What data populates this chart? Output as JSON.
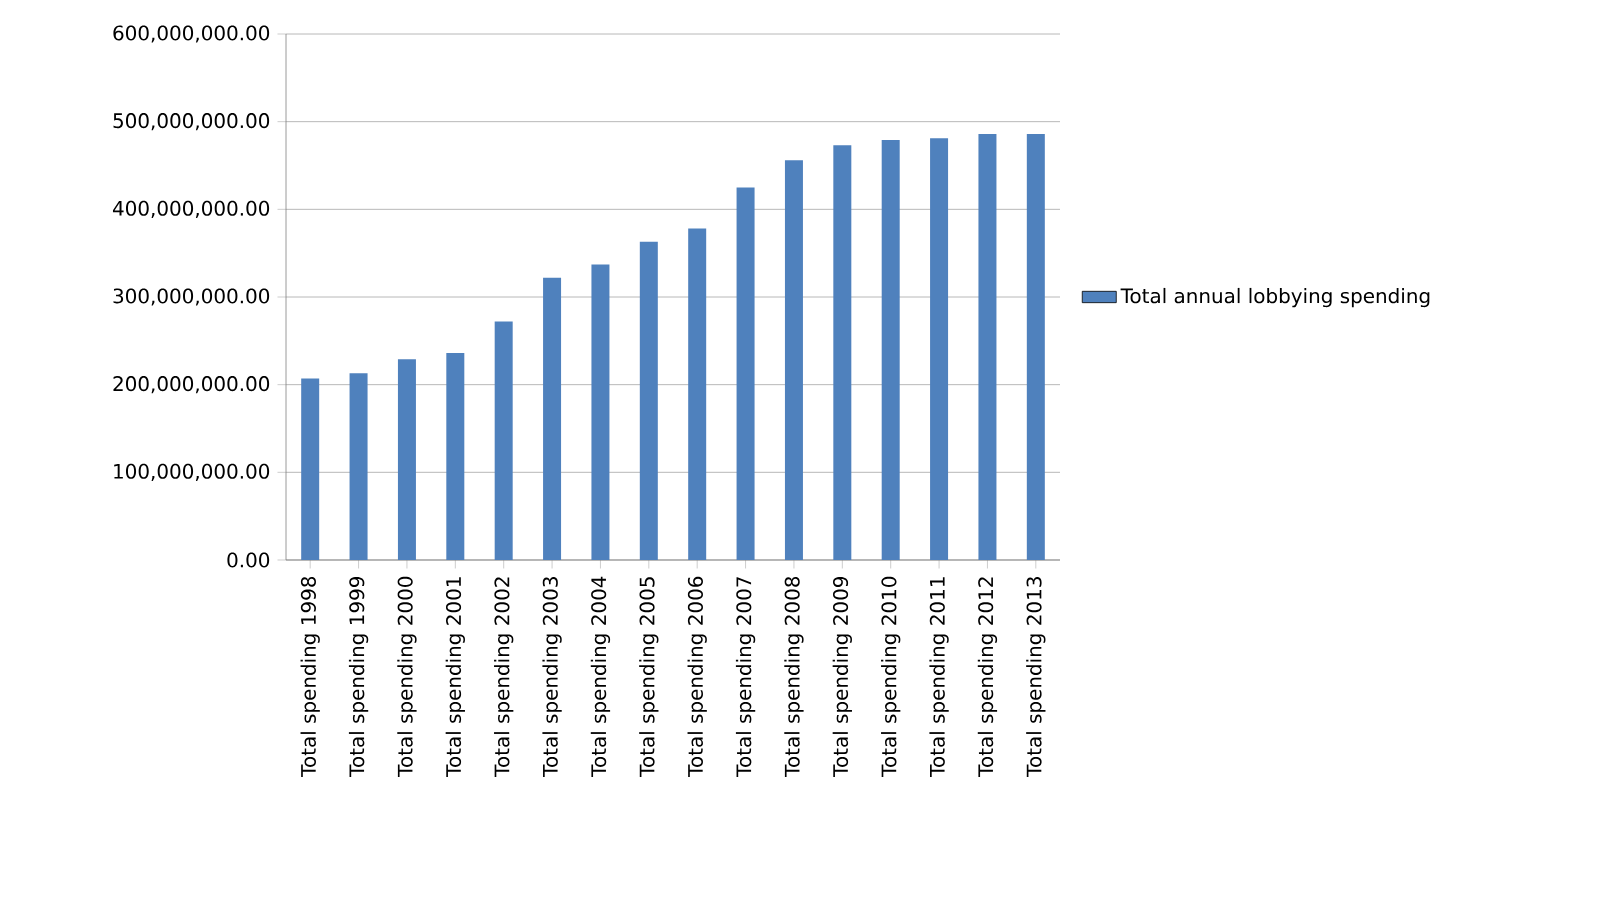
{
  "chart_data": {
    "type": "bar",
    "categories": [
      "Total spending 1998",
      "Total spending 1999",
      "Total spending 2000",
      "Total spending 2001",
      "Total spending 2002",
      "Total spending 2003",
      "Total spending 2004",
      "Total spending 2005",
      "Total spending 2006",
      "Total spending 2007",
      "Total spending 2008",
      "Total spending 2009",
      "Total spending 2010",
      "Total spending 2011",
      "Total spending 2012",
      "Total spending 2013"
    ],
    "series": [
      {
        "name": "Total annual lobbying spending",
        "color": "#4f81bd",
        "values": [
          207000000,
          213000000,
          229000000,
          236000000,
          272000000,
          322000000,
          337000000,
          363000000,
          378000000,
          425000000,
          456000000,
          473000000,
          479000000,
          481000000,
          486000000,
          486000000
        ]
      }
    ],
    "ylim": [
      0,
      600000000
    ],
    "yticks": [
      {
        "value": 0,
        "label": "0.00"
      },
      {
        "value": 100000000,
        "label": "100,000,000.00"
      },
      {
        "value": 200000000,
        "label": "200,000,000.00"
      },
      {
        "value": 300000000,
        "label": "300,000,000.00"
      },
      {
        "value": 400000000,
        "label": "400,000,000.00"
      },
      {
        "value": 500000000,
        "label": "500,000,000.00"
      },
      {
        "value": 600000000,
        "label": "600,000,000.00"
      }
    ],
    "grid": "y",
    "legend": "right"
  }
}
